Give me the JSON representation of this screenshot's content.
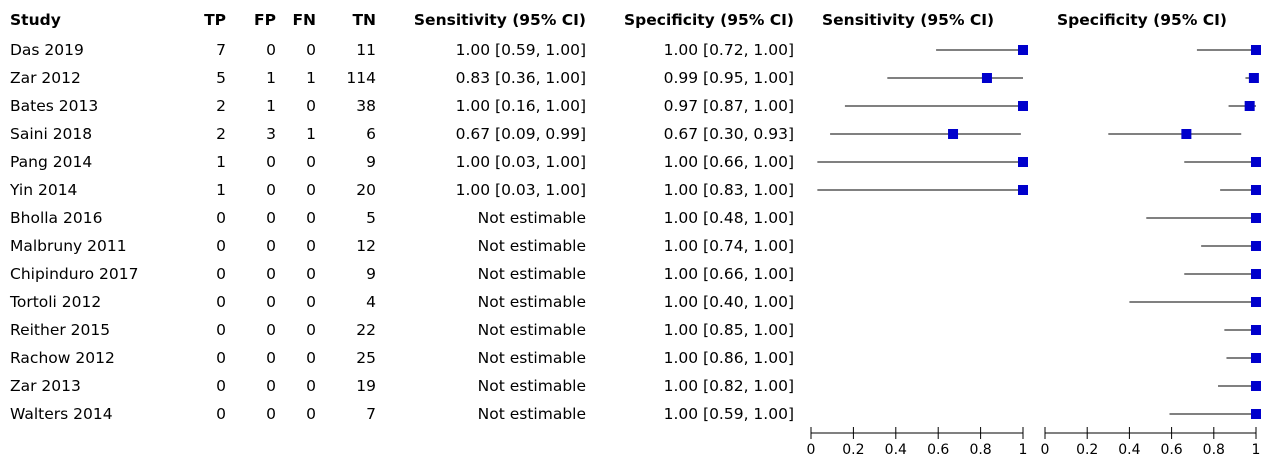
{
  "headers": {
    "study": "Study",
    "tp": "TP",
    "fp": "FP",
    "fn": "FN",
    "tn": "TN",
    "sens_ci": "Sensitivity (95% CI)",
    "spec_ci": "Specificity (95% CI)",
    "sens_plot": "Sensitivity (95% CI)",
    "spec_plot": "Specificity (95% CI)"
  },
  "chart_data": {
    "type": "forest",
    "axis": {
      "range": [
        0,
        1
      ],
      "ticks": [
        "0",
        "0.2",
        "0.4",
        "0.6",
        "0.8",
        "1"
      ]
    },
    "colors": {
      "marker": "#0000cc",
      "line": "#000000"
    },
    "studies": [
      {
        "study": "Das 2019",
        "tp": 7,
        "fp": 0,
        "fn": 0,
        "tn": 11,
        "sens_text": "1.00 [0.59, 1.00]",
        "spec_text": "1.00 [0.72, 1.00]",
        "sens": [
          1.0,
          0.59,
          1.0
        ],
        "spec": [
          1.0,
          0.72,
          1.0
        ]
      },
      {
        "study": "Zar 2012",
        "tp": 5,
        "fp": 1,
        "fn": 1,
        "tn": 114,
        "sens_text": "0.83 [0.36, 1.00]",
        "spec_text": "0.99 [0.95, 1.00]",
        "sens": [
          0.83,
          0.36,
          1.0
        ],
        "spec": [
          0.99,
          0.95,
          1.0
        ]
      },
      {
        "study": "Bates 2013",
        "tp": 2,
        "fp": 1,
        "fn": 0,
        "tn": 38,
        "sens_text": "1.00 [0.16, 1.00]",
        "spec_text": "0.97 [0.87, 1.00]",
        "sens": [
          1.0,
          0.16,
          1.0
        ],
        "spec": [
          0.97,
          0.87,
          1.0
        ]
      },
      {
        "study": "Saini 2018",
        "tp": 2,
        "fp": 3,
        "fn": 1,
        "tn": 6,
        "sens_text": "0.67 [0.09, 0.99]",
        "spec_text": "0.67 [0.30, 0.93]",
        "sens": [
          0.67,
          0.09,
          0.99
        ],
        "spec": [
          0.67,
          0.3,
          0.93
        ]
      },
      {
        "study": "Pang 2014",
        "tp": 1,
        "fp": 0,
        "fn": 0,
        "tn": 9,
        "sens_text": "1.00 [0.03, 1.00]",
        "spec_text": "1.00 [0.66, 1.00]",
        "sens": [
          1.0,
          0.03,
          1.0
        ],
        "spec": [
          1.0,
          0.66,
          1.0
        ]
      },
      {
        "study": "Yin 2014",
        "tp": 1,
        "fp": 0,
        "fn": 0,
        "tn": 20,
        "sens_text": "1.00 [0.03, 1.00]",
        "spec_text": "1.00 [0.83, 1.00]",
        "sens": [
          1.0,
          0.03,
          1.0
        ],
        "spec": [
          1.0,
          0.83,
          1.0
        ]
      },
      {
        "study": "Bholla 2016",
        "tp": 0,
        "fp": 0,
        "fn": 0,
        "tn": 5,
        "sens_text": "Not estimable",
        "spec_text": "1.00 [0.48, 1.00]",
        "sens": null,
        "spec": [
          1.0,
          0.48,
          1.0
        ]
      },
      {
        "study": "Malbruny 2011",
        "tp": 0,
        "fp": 0,
        "fn": 0,
        "tn": 12,
        "sens_text": "Not estimable",
        "spec_text": "1.00 [0.74, 1.00]",
        "sens": null,
        "spec": [
          1.0,
          0.74,
          1.0
        ]
      },
      {
        "study": "Chipinduro 2017",
        "tp": 0,
        "fp": 0,
        "fn": 0,
        "tn": 9,
        "sens_text": "Not estimable",
        "spec_text": "1.00 [0.66, 1.00]",
        "sens": null,
        "spec": [
          1.0,
          0.66,
          1.0
        ]
      },
      {
        "study": "Tortoli 2012",
        "tp": 0,
        "fp": 0,
        "fn": 0,
        "tn": 4,
        "sens_text": "Not estimable",
        "spec_text": "1.00 [0.40, 1.00]",
        "sens": null,
        "spec": [
          1.0,
          0.4,
          1.0
        ]
      },
      {
        "study": "Reither 2015",
        "tp": 0,
        "fp": 0,
        "fn": 0,
        "tn": 22,
        "sens_text": "Not estimable",
        "spec_text": "1.00 [0.85, 1.00]",
        "sens": null,
        "spec": [
          1.0,
          0.85,
          1.0
        ]
      },
      {
        "study": "Rachow 2012",
        "tp": 0,
        "fp": 0,
        "fn": 0,
        "tn": 25,
        "sens_text": "Not estimable",
        "spec_text": "1.00 [0.86, 1.00]",
        "sens": null,
        "spec": [
          1.0,
          0.86,
          1.0
        ]
      },
      {
        "study": "Zar 2013",
        "tp": 0,
        "fp": 0,
        "fn": 0,
        "tn": 19,
        "sens_text": "Not estimable",
        "spec_text": "1.00 [0.82, 1.00]",
        "sens": null,
        "spec": [
          1.0,
          0.82,
          1.0
        ]
      },
      {
        "study": "Walters 2014",
        "tp": 0,
        "fp": 0,
        "fn": 0,
        "tn": 7,
        "sens_text": "Not estimable",
        "spec_text": "1.00 [0.59, 1.00]",
        "sens": null,
        "spec": [
          1.0,
          0.59,
          1.0
        ]
      }
    ]
  }
}
